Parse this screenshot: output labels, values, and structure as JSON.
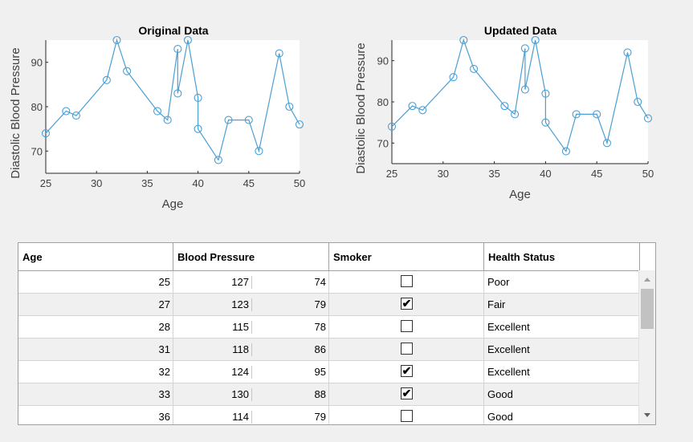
{
  "chart_data": [
    {
      "type": "line",
      "title": "Original Data",
      "xlabel": "Age",
      "ylabel": "Diastolic Blood Pressure",
      "xlim": [
        25,
        50
      ],
      "ylim": [
        65,
        95
      ],
      "xticks": [
        25,
        30,
        35,
        40,
        45,
        50
      ],
      "yticks": [
        70,
        80,
        90
      ],
      "series": [
        {
          "x": [
            25,
            27,
            28,
            31,
            32,
            33,
            36,
            37,
            38,
            38,
            39,
            40,
            40,
            42,
            43,
            45,
            46,
            48,
            49,
            50
          ],
          "values": [
            74,
            79,
            78,
            86,
            95,
            88,
            79,
            77,
            93,
            83,
            95,
            82,
            75,
            68,
            77,
            77,
            70,
            92,
            80,
            76
          ]
        }
      ],
      "marker": "circle",
      "color": "#4a9fd4"
    },
    {
      "type": "line",
      "title": "Updated Data",
      "xlabel": "Age",
      "ylabel": "Diastolic Blood Pressure",
      "xlim": [
        25,
        50
      ],
      "ylim": [
        65,
        95
      ],
      "xticks": [
        25,
        30,
        35,
        40,
        45,
        50
      ],
      "yticks": [
        70,
        80,
        90
      ],
      "series": [
        {
          "x": [
            25,
            27,
            28,
            31,
            32,
            33,
            36,
            37,
            38,
            38,
            39,
            40,
            40,
            42,
            43,
            45,
            46,
            48,
            49,
            50
          ],
          "values": [
            74,
            79,
            78,
            86,
            95,
            88,
            79,
            77,
            93,
            83,
            95,
            82,
            75,
            68,
            77,
            77,
            70,
            92,
            80,
            76
          ]
        }
      ],
      "marker": "circle",
      "color": "#4a9fd4"
    }
  ],
  "table": {
    "headers": [
      "Age",
      "Blood Pressure",
      "Smoker",
      "Health Status"
    ],
    "rows": [
      {
        "age": "25",
        "systolic": "127",
        "diastolic": "74",
        "smoker": false,
        "status": "Poor"
      },
      {
        "age": "27",
        "systolic": "123",
        "diastolic": "79",
        "smoker": true,
        "status": "Fair"
      },
      {
        "age": "28",
        "systolic": "115",
        "diastolic": "78",
        "smoker": false,
        "status": "Excellent"
      },
      {
        "age": "31",
        "systolic": "118",
        "diastolic": "86",
        "smoker": false,
        "status": "Excellent"
      },
      {
        "age": "32",
        "systolic": "124",
        "diastolic": "95",
        "smoker": true,
        "status": "Excellent"
      },
      {
        "age": "33",
        "systolic": "130",
        "diastolic": "88",
        "smoker": true,
        "status": "Good"
      },
      {
        "age": "36",
        "systolic": "114",
        "diastolic": "79",
        "smoker": false,
        "status": "Good"
      }
    ],
    "check_glyph": "✔"
  }
}
